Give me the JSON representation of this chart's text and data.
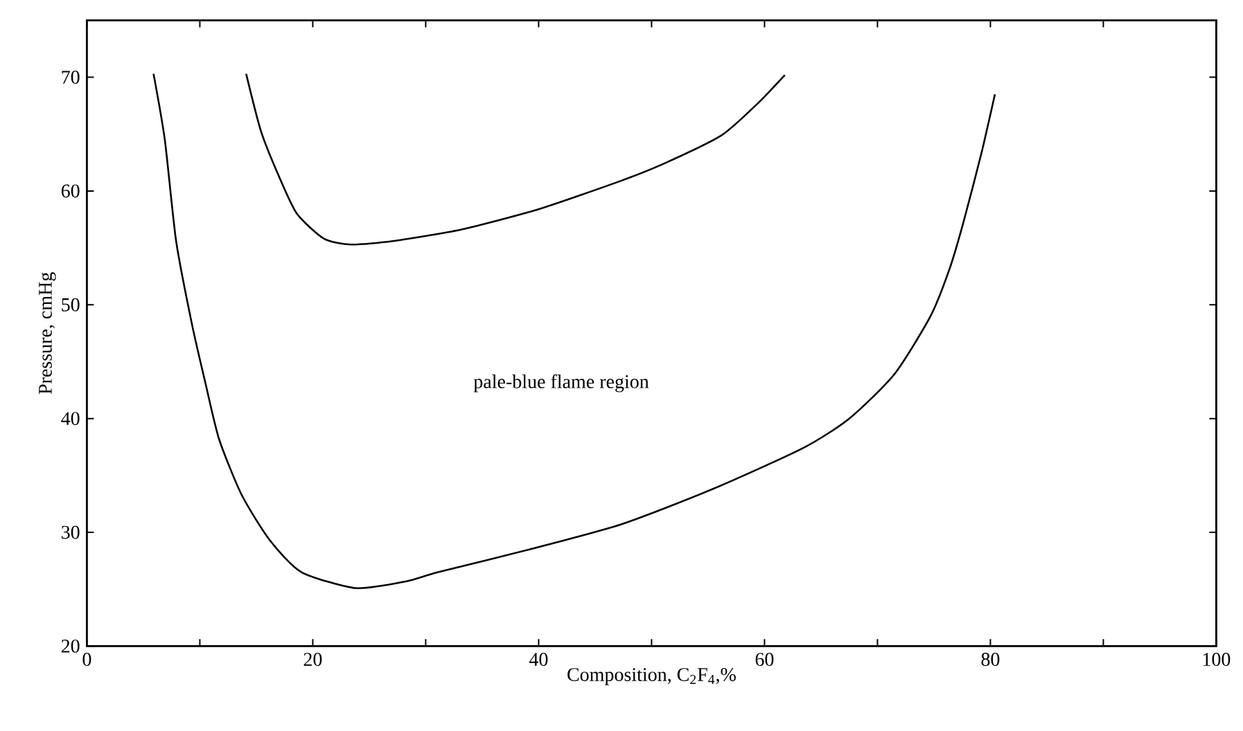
{
  "chart_data": {
    "type": "line",
    "xlabel": "Composition, C$_{2}$F$_{4}$,%",
    "ylabel": "Pressure, cmHg",
    "annotations": [
      "pale-blue flame region"
    ],
    "xlim": [
      0,
      100
    ],
    "ylim": [
      20,
      75
    ],
    "xticks": [
      0,
      {
        "value": 10,
        "label": null
      },
      20,
      {
        "value": 30,
        "label": null
      },
      40,
      {
        "value": 50,
        "label": null
      },
      60,
      {
        "value": 70,
        "label": null
      },
      80,
      {
        "value": 90,
        "label": null
      },
      100
    ],
    "yticks": [
      20,
      30,
      40,
      50,
      60,
      70
    ],
    "line_style": "solid",
    "series": [
      {
        "color": "#000000",
        "x": [
          5.9,
          6.9,
          7.9,
          9.3,
          10.5,
          11.7,
          13.7,
          16.2,
          19.0,
          23.8,
          28.3,
          31.1,
          39.2,
          47.3,
          55.4,
          63.4,
          67.5,
          71.5,
          74.7,
          76.4,
          77.6,
          79.2,
          80.4
        ],
        "values": [
          70.3,
          64.5,
          55.6,
          48.3,
          43.1,
          38.2,
          33.3,
          29.3,
          26.5,
          25.1,
          25.7,
          26.5,
          28.5,
          30.7,
          33.8,
          37.4,
          40.0,
          43.9,
          49.0,
          53.2,
          57.2,
          63.3,
          68.5
        ]
      },
      {
        "color": "#000000",
        "x": [
          14.1,
          15.4,
          17.0,
          18.6,
          21.0,
          23.4,
          27.1,
          33.1,
          40.0,
          47.3,
          51.3,
          56.2,
          59.4,
          61.8
        ],
        "values": [
          70.3,
          65.3,
          61.3,
          58.0,
          55.8,
          55.3,
          55.6,
          56.6,
          58.4,
          60.9,
          62.5,
          64.9,
          67.7,
          70.2
        ]
      }
    ]
  }
}
